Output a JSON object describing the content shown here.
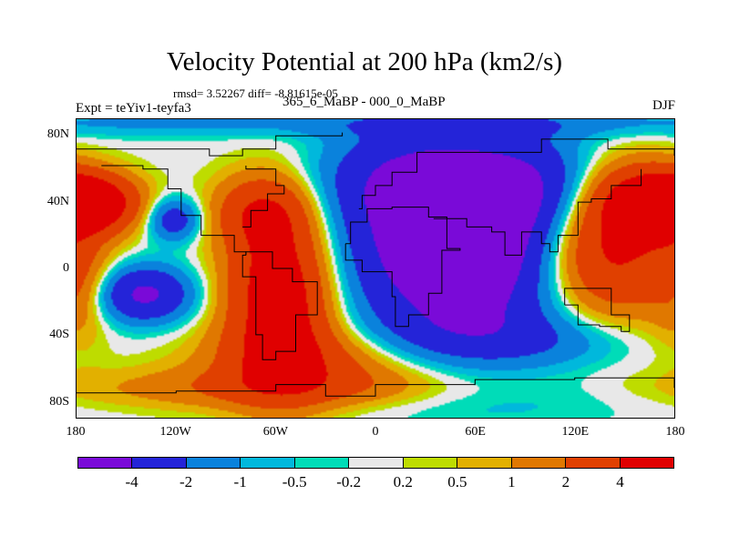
{
  "title": "Velocity Potential at 200 hPa (km2/s)",
  "stats": "rmsd= 3.52267 diff= -8.81615e-05",
  "experiment": "Expt = teYiv1-teyfa3",
  "comparison": "365_6_MaBP - 000_0_MaBP",
  "season": "DJF",
  "chart_data": {
    "type": "heatmap",
    "title": "Velocity Potential at 200 hPa (km2/s)",
    "x_ticks": [
      "180",
      "120W",
      "60W",
      "0",
      "60E",
      "120E",
      "180"
    ],
    "x_tick_values": [
      -180,
      -120,
      -60,
      0,
      60,
      120,
      180
    ],
    "y_ticks": [
      "80N",
      "40N",
      "0",
      "40S",
      "80S"
    ],
    "y_tick_values": [
      80,
      40,
      0,
      -40,
      -80
    ],
    "xlim": [
      -180,
      180
    ],
    "ylim": [
      -90,
      90
    ],
    "colorbar": {
      "labels": [
        "-4",
        "-2",
        "-1",
        "-0.5",
        "-0.2",
        "0.2",
        "0.5",
        "1",
        "2",
        "4"
      ],
      "levels": [
        -4,
        -2,
        -1,
        -0.5,
        -0.2,
        0.2,
        0.5,
        1,
        2,
        4
      ],
      "colors": [
        "#7a0ad8",
        "#2424d8",
        "#0a82dc",
        "#00b8dc",
        "#00dcb8",
        "#e8e8e8",
        "#bedc00",
        "#e2b000",
        "#e07800",
        "#e04000",
        "#e00000"
      ]
    },
    "features": [
      {
        "region": "Africa / Asia",
        "value_range": "< -4"
      },
      {
        "region": "South America",
        "value_range": "> 4"
      },
      {
        "region": "Western Pacific / Maritime Continent",
        "value_range": "> 4"
      },
      {
        "region": "Central Pacific",
        "value_range": "-4 to -2"
      }
    ]
  }
}
